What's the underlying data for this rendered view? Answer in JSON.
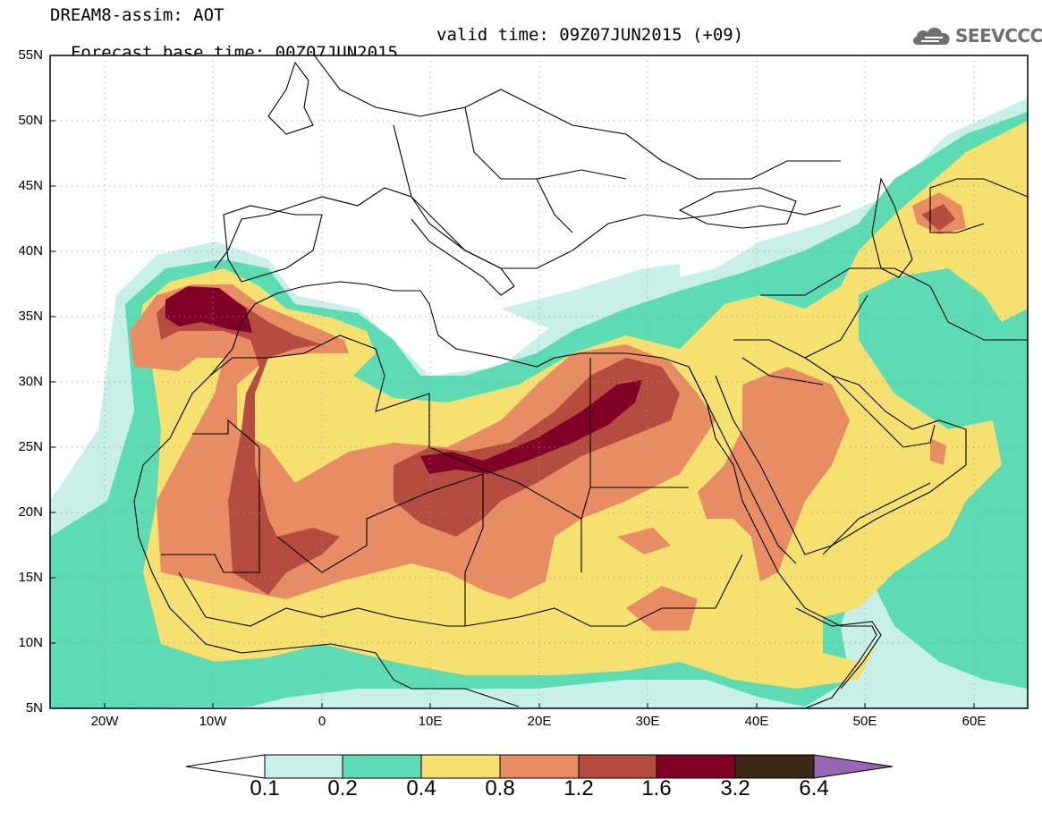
{
  "header": {
    "title": "DREAM8-assim: AOT",
    "base_time": "Forecast base time: 00Z07JUN2015",
    "valid_time": "valid time: 09Z07JUN2015 (+09)"
  },
  "logo": {
    "text": "SEEVCCC",
    "icon": "cloud-icon"
  },
  "map": {
    "lat_labels": [
      "55N",
      "50N",
      "45N",
      "40N",
      "35N",
      "30N",
      "25N",
      "20N",
      "15N",
      "10N",
      "5N"
    ],
    "lon_labels": [
      "20W",
      "10W",
      "0",
      "10E",
      "20E",
      "30E",
      "40E",
      "50E",
      "60E"
    ],
    "extent": {
      "lon_min": -25,
      "lon_max": 65,
      "lat_min": 5,
      "lat_max": 55
    }
  },
  "colorbar": {
    "levels": [
      "0.1",
      "0.2",
      "0.4",
      "0.8",
      "1.2",
      "1.6",
      "3.2",
      "6.4"
    ],
    "colors": [
      "#ffffff",
      "#c8f0e8",
      "#5ddcb4",
      "#f5e070",
      "#e88c64",
      "#b44c40",
      "#820028",
      "#3c2814",
      "#9a64b4"
    ]
  }
}
